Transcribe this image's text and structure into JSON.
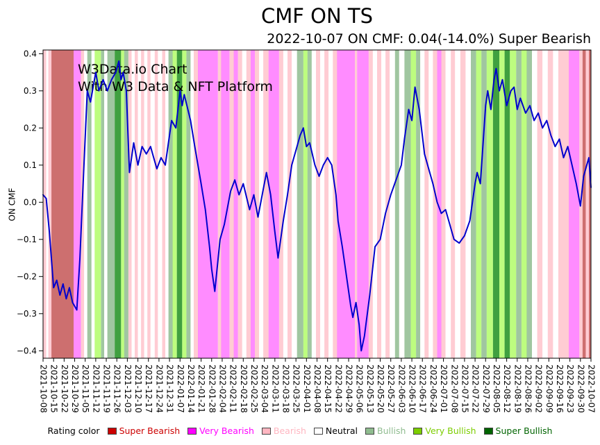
{
  "title": "CMF ON TS",
  "subtitle": "2022-10-07 ON CMF: 0.04(-14.0%) Super Bearish",
  "current": {
    "date": "2022-10-07",
    "value": 0.04,
    "change_pct": -14.0,
    "rating": "Super Bearish"
  },
  "watermark": {
    "line1": "W3Data.io Chart",
    "line2": "With W3 Data & NFT Platform",
    "color": "#b3b3b3"
  },
  "legend": {
    "label": "Rating color",
    "items": [
      {
        "label": "Super Bearish",
        "color": "#cc0000"
      },
      {
        "label": "Very Bearish",
        "color": "#ff00ff"
      },
      {
        "label": "Bearish",
        "color": "#ffb6c1"
      },
      {
        "label": "Neutral",
        "color": "#ffffff",
        "text_color": "#000000"
      },
      {
        "label": "Bullish",
        "color": "#8fbc8f"
      },
      {
        "label": "Very Bullish",
        "color": "#7ccd00"
      },
      {
        "label": "Super Bullish",
        "color": "#006400"
      }
    ]
  },
  "chart_data": {
    "type": "line",
    "title": "CMF ON TS",
    "subtitle": "2022-10-07 ON CMF: 0.04(-14.0%) Super Bearish",
    "xlabel": "",
    "ylabel": "ON CMF",
    "ylim": [
      -0.42,
      0.41
    ],
    "yticks": [
      -0.4,
      -0.3,
      -0.2,
      -0.1,
      0.0,
      0.1,
      0.2,
      0.3,
      0.4
    ],
    "grid": false,
    "legend_position": "bottom",
    "x_tick_labels": [
      "2021-10-08",
      "2021-10-15",
      "2021-10-22",
      "2021-10-29",
      "2021-11-05",
      "2021-11-12",
      "2021-11-19",
      "2021-11-26",
      "2021-12-03",
      "2021-12-10",
      "2021-12-17",
      "2021-12-24",
      "2021-12-31",
      "2022-01-07",
      "2022-01-14",
      "2022-01-21",
      "2022-01-28",
      "2022-02-04",
      "2022-02-11",
      "2022-02-18",
      "2022-02-25",
      "2022-03-04",
      "2022-03-11",
      "2022-03-18",
      "2022-03-25",
      "2022-04-01",
      "2022-04-08",
      "2022-04-15",
      "2022-04-22",
      "2022-04-29",
      "2022-05-06",
      "2022-05-13",
      "2022-05-20",
      "2022-05-27",
      "2022-06-03",
      "2022-06-10",
      "2022-06-17",
      "2022-06-24",
      "2022-07-01",
      "2022-07-08",
      "2022-07-15",
      "2022-07-22",
      "2022-07-29",
      "2022-08-05",
      "2022-08-12",
      "2022-08-19",
      "2022-08-26",
      "2022-09-02",
      "2022-09-09",
      "2022-09-16",
      "2022-09-23",
      "2022-09-30",
      "2022-10-07"
    ],
    "series": [
      {
        "name": "ON CMF",
        "color": "#0000cd",
        "points": [
          [
            0,
            0.02
          ],
          [
            0.3,
            0.01
          ],
          [
            0.6,
            -0.08
          ],
          [
            1,
            -0.23
          ],
          [
            1.3,
            -0.21
          ],
          [
            1.6,
            -0.25
          ],
          [
            1.9,
            -0.22
          ],
          [
            2.2,
            -0.26
          ],
          [
            2.5,
            -0.23
          ],
          [
            2.8,
            -0.27
          ],
          [
            3.2,
            -0.29
          ],
          [
            3.5,
            -0.15
          ],
          [
            3.8,
            0.05
          ],
          [
            4.2,
            0.3
          ],
          [
            4.5,
            0.27
          ],
          [
            5,
            0.35
          ],
          [
            5.3,
            0.3
          ],
          [
            5.7,
            0.33
          ],
          [
            6.1,
            0.3
          ],
          [
            6.5,
            0.33
          ],
          [
            6.9,
            0.35
          ],
          [
            7.2,
            0.38
          ],
          [
            7.4,
            0.33
          ],
          [
            7.6,
            0.35
          ],
          [
            7.9,
            0.3
          ],
          [
            8.2,
            0.08
          ],
          [
            8.6,
            0.16
          ],
          [
            9,
            0.1
          ],
          [
            9.4,
            0.15
          ],
          [
            9.8,
            0.13
          ],
          [
            10.2,
            0.15
          ],
          [
            10.5,
            0.12
          ],
          [
            10.8,
            0.09
          ],
          [
            11.2,
            0.12
          ],
          [
            11.6,
            0.1
          ],
          [
            12.2,
            0.22
          ],
          [
            12.6,
            0.2
          ],
          [
            13,
            0.3
          ],
          [
            13.2,
            0.26
          ],
          [
            13.4,
            0.29
          ],
          [
            14,
            0.22
          ],
          [
            14.4,
            0.15
          ],
          [
            15,
            0.05
          ],
          [
            15.4,
            -0.02
          ],
          [
            15.8,
            -0.12
          ],
          [
            16,
            -0.18
          ],
          [
            16.3,
            -0.24
          ],
          [
            16.8,
            -0.1
          ],
          [
            17.2,
            -0.06
          ],
          [
            17.8,
            0.03
          ],
          [
            18.2,
            0.06
          ],
          [
            18.6,
            0.02
          ],
          [
            19,
            0.05
          ],
          [
            19.6,
            -0.02
          ],
          [
            20,
            0.02
          ],
          [
            20.4,
            -0.04
          ],
          [
            20.8,
            0.02
          ],
          [
            21.2,
            0.08
          ],
          [
            21.6,
            0.02
          ],
          [
            22,
            -0.08
          ],
          [
            22.3,
            -0.15
          ],
          [
            22.8,
            -0.05
          ],
          [
            23.2,
            0.02
          ],
          [
            23.6,
            0.1
          ],
          [
            24,
            0.14
          ],
          [
            24.4,
            0.18
          ],
          [
            24.7,
            0.2
          ],
          [
            25,
            0.15
          ],
          [
            25.3,
            0.16
          ],
          [
            25.8,
            0.1
          ],
          [
            26.2,
            0.07
          ],
          [
            26.6,
            0.1
          ],
          [
            27,
            0.12
          ],
          [
            27.4,
            0.1
          ],
          [
            27.8,
            0.02
          ],
          [
            28,
            -0.05
          ],
          [
            28.4,
            -0.12
          ],
          [
            28.8,
            -0.2
          ],
          [
            29.2,
            -0.28
          ],
          [
            29.4,
            -0.31
          ],
          [
            29.7,
            -0.27
          ],
          [
            30,
            -0.33
          ],
          [
            30.2,
            -0.4
          ],
          [
            30.5,
            -0.36
          ],
          [
            31,
            -0.25
          ],
          [
            31.5,
            -0.12
          ],
          [
            32,
            -0.1
          ],
          [
            32.5,
            -0.03
          ],
          [
            33,
            0.02
          ],
          [
            33.5,
            0.06
          ],
          [
            34,
            0.1
          ],
          [
            34.3,
            0.17
          ],
          [
            34.7,
            0.25
          ],
          [
            35,
            0.22
          ],
          [
            35.3,
            0.31
          ],
          [
            35.7,
            0.25
          ],
          [
            36.2,
            0.13
          ],
          [
            36.6,
            0.09
          ],
          [
            37,
            0.05
          ],
          [
            37.4,
            0
          ],
          [
            37.8,
            -0.03
          ],
          [
            38.2,
            -0.02
          ],
          [
            38.6,
            -0.06
          ],
          [
            39,
            -0.1
          ],
          [
            39.5,
            -0.11
          ],
          [
            40,
            -0.09
          ],
          [
            40.5,
            -0.05
          ],
          [
            41,
            0.05
          ],
          [
            41.2,
            0.08
          ],
          [
            41.5,
            0.05
          ],
          [
            42,
            0.26
          ],
          [
            42.2,
            0.3
          ],
          [
            42.5,
            0.25
          ],
          [
            42.8,
            0.33
          ],
          [
            43,
            0.36
          ],
          [
            43.3,
            0.3
          ],
          [
            43.6,
            0.33
          ],
          [
            44,
            0.26
          ],
          [
            44.4,
            0.3
          ],
          [
            44.7,
            0.31
          ],
          [
            45,
            0.25
          ],
          [
            45.3,
            0.28
          ],
          [
            45.8,
            0.24
          ],
          [
            46.2,
            0.26
          ],
          [
            46.6,
            0.22
          ],
          [
            47,
            0.24
          ],
          [
            47.4,
            0.2
          ],
          [
            47.8,
            0.22
          ],
          [
            48.2,
            0.18
          ],
          [
            48.6,
            0.15
          ],
          [
            49,
            0.17
          ],
          [
            49.4,
            0.12
          ],
          [
            49.8,
            0.15
          ],
          [
            50.2,
            0.1
          ],
          [
            50.6,
            0.05
          ],
          [
            51,
            -0.01
          ],
          [
            51.3,
            0.07
          ],
          [
            51.6,
            0.1
          ],
          [
            51.8,
            0.12
          ],
          [
            52,
            0.04
          ]
        ]
      }
    ],
    "rating_bands": {
      "colors": {
        "super_bearish": "rgba(178,34,34,0.65)",
        "very_bearish": "rgba(255,0,255,0.45)",
        "bearish": "rgba(255,182,193,0.7)",
        "neutral": "#ffffff",
        "bullish": "rgba(143,188,143,0.85)",
        "very_bullish": "rgba(124,252,0,0.5)",
        "super_bullish": "rgba(0,128,0,0.75)"
      },
      "segments": [
        [
          0,
          0.3,
          "bearish"
        ],
        [
          0.3,
          0.5,
          "neutral"
        ],
        [
          0.5,
          0.8,
          "bearish"
        ],
        [
          0.8,
          2.9,
          "super_bearish"
        ],
        [
          2.9,
          3.6,
          "very_bearish"
        ],
        [
          3.6,
          3.9,
          "bearish"
        ],
        [
          3.9,
          4.2,
          "neutral"
        ],
        [
          4.2,
          4.6,
          "bullish"
        ],
        [
          4.6,
          4.9,
          "neutral"
        ],
        [
          4.9,
          5.5,
          "very_bullish"
        ],
        [
          5.5,
          5.8,
          "bullish"
        ],
        [
          5.8,
          6.1,
          "neutral"
        ],
        [
          6.1,
          6.8,
          "bullish"
        ],
        [
          6.8,
          7.4,
          "super_bullish"
        ],
        [
          7.4,
          7.7,
          "very_bullish"
        ],
        [
          7.7,
          8.1,
          "bullish"
        ],
        [
          8.1,
          8.4,
          "bearish"
        ],
        [
          8.4,
          8.7,
          "neutral"
        ],
        [
          8.7,
          9,
          "bearish"
        ],
        [
          9,
          9.3,
          "neutral"
        ],
        [
          9.3,
          9.6,
          "bearish"
        ],
        [
          9.6,
          9.9,
          "neutral"
        ],
        [
          9.9,
          10.2,
          "bearish"
        ],
        [
          10.2,
          10.6,
          "neutral"
        ],
        [
          10.6,
          10.9,
          "bearish"
        ],
        [
          10.9,
          11.3,
          "neutral"
        ],
        [
          11.3,
          11.6,
          "bearish"
        ],
        [
          11.6,
          11.9,
          "neutral"
        ],
        [
          11.9,
          12.3,
          "bullish"
        ],
        [
          12.3,
          12.7,
          "very_bullish"
        ],
        [
          12.7,
          13.2,
          "super_bullish"
        ],
        [
          13.2,
          13.6,
          "very_bullish"
        ],
        [
          13.6,
          14,
          "bullish"
        ],
        [
          14,
          14.3,
          "neutral"
        ],
        [
          14.3,
          14.7,
          "bearish"
        ],
        [
          14.7,
          16.6,
          "very_bearish"
        ],
        [
          16.6,
          16.9,
          "bearish"
        ],
        [
          16.9,
          17.7,
          "very_bearish"
        ],
        [
          17.7,
          18.1,
          "bearish"
        ],
        [
          18.1,
          18.5,
          "very_bearish"
        ],
        [
          18.5,
          18.9,
          "bearish"
        ],
        [
          18.9,
          19.3,
          "neutral"
        ],
        [
          19.3,
          19.7,
          "bearish"
        ],
        [
          19.7,
          20.1,
          "very_bearish"
        ],
        [
          20.1,
          20.5,
          "bearish"
        ],
        [
          20.5,
          20.9,
          "neutral"
        ],
        [
          20.9,
          21.4,
          "bearish"
        ],
        [
          21.4,
          22.4,
          "very_bearish"
        ],
        [
          22.4,
          22.8,
          "bearish"
        ],
        [
          22.8,
          23.2,
          "neutral"
        ],
        [
          23.2,
          23.6,
          "bearish"
        ],
        [
          23.6,
          24.1,
          "neutral"
        ],
        [
          24.1,
          24.7,
          "bullish"
        ],
        [
          24.7,
          25.1,
          "very_bullish"
        ],
        [
          25.1,
          25.5,
          "bullish"
        ],
        [
          25.5,
          25.9,
          "neutral"
        ],
        [
          25.9,
          26.3,
          "bearish"
        ],
        [
          26.3,
          26.7,
          "neutral"
        ],
        [
          26.7,
          27.1,
          "bearish"
        ],
        [
          27.1,
          27.5,
          "neutral"
        ],
        [
          27.5,
          27.9,
          "bearish"
        ],
        [
          27.9,
          29.6,
          "very_bearish"
        ],
        [
          29.6,
          29.8,
          "bearish"
        ],
        [
          29.8,
          30.9,
          "very_bearish"
        ],
        [
          30.9,
          31.3,
          "bearish"
        ],
        [
          31.3,
          31.7,
          "neutral"
        ],
        [
          31.7,
          32.1,
          "bearish"
        ],
        [
          32.1,
          32.5,
          "neutral"
        ],
        [
          32.5,
          32.9,
          "bearish"
        ],
        [
          32.9,
          33.4,
          "neutral"
        ],
        [
          33.4,
          33.8,
          "bullish"
        ],
        [
          33.8,
          34.3,
          "neutral"
        ],
        [
          34.3,
          34.9,
          "bullish"
        ],
        [
          34.9,
          35.4,
          "very_bullish"
        ],
        [
          35.4,
          35.8,
          "bullish"
        ],
        [
          35.8,
          36.2,
          "neutral"
        ],
        [
          36.2,
          36.6,
          "bearish"
        ],
        [
          36.6,
          37,
          "neutral"
        ],
        [
          37,
          37.4,
          "bearish"
        ],
        [
          37.4,
          37.8,
          "very_bearish"
        ],
        [
          37.8,
          38.2,
          "bearish"
        ],
        [
          38.2,
          38.7,
          "neutral"
        ],
        [
          38.7,
          39.1,
          "bearish"
        ],
        [
          39.1,
          39.6,
          "neutral"
        ],
        [
          39.6,
          40.1,
          "bearish"
        ],
        [
          40.1,
          40.6,
          "neutral"
        ],
        [
          40.6,
          41.1,
          "bullish"
        ],
        [
          41.1,
          41.6,
          "very_bullish"
        ],
        [
          41.6,
          42.1,
          "bullish"
        ],
        [
          42.1,
          42.7,
          "very_bullish"
        ],
        [
          42.7,
          43.3,
          "super_bullish"
        ],
        [
          43.3,
          43.8,
          "very_bullish"
        ],
        [
          43.8,
          44.3,
          "super_bullish"
        ],
        [
          44.3,
          44.9,
          "very_bullish"
        ],
        [
          44.9,
          45.4,
          "bullish"
        ],
        [
          45.4,
          45.9,
          "very_bullish"
        ],
        [
          45.9,
          46.4,
          "bullish"
        ],
        [
          46.4,
          46.9,
          "neutral"
        ],
        [
          46.9,
          47.4,
          "bearish"
        ],
        [
          47.4,
          47.9,
          "neutral"
        ],
        [
          47.9,
          48.4,
          "bearish"
        ],
        [
          48.4,
          48.9,
          "neutral"
        ],
        [
          48.9,
          49.9,
          "bearish"
        ],
        [
          49.9,
          50.9,
          "very_bearish"
        ],
        [
          50.9,
          51.2,
          "bearish"
        ],
        [
          51.2,
          51.5,
          "super_bearish"
        ],
        [
          51.5,
          51.8,
          "bearish"
        ],
        [
          51.8,
          52,
          "super_bearish"
        ]
      ]
    }
  }
}
